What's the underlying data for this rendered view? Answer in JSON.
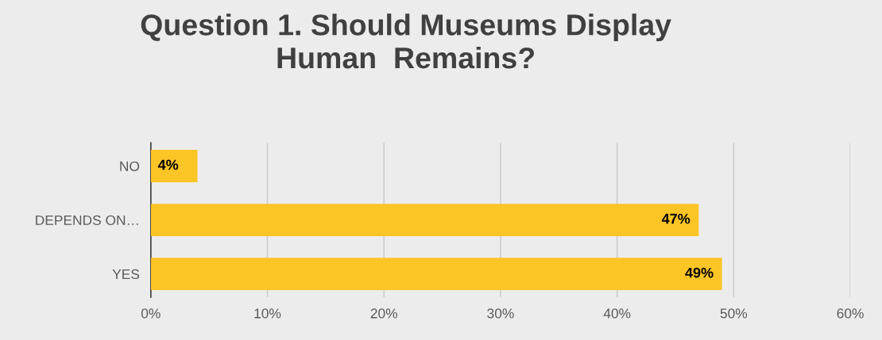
{
  "chart_data": {
    "type": "bar",
    "orientation": "horizontal",
    "title": "Question 1. Should Museums Display\nHuman  Remains?",
    "categories": [
      "NO",
      "DEPENDS ON…",
      "YES"
    ],
    "values": [
      4,
      47,
      49
    ],
    "color": "#fcc526",
    "value_labels": [
      "4%",
      "47%",
      "49%"
    ],
    "xlim": [
      0,
      60
    ],
    "xticks": [
      {
        "value": 0,
        "label": "0%"
      },
      {
        "value": 10,
        "label": "10%"
      },
      {
        "value": 20,
        "label": "20%"
      },
      {
        "value": 30,
        "label": "30%"
      },
      {
        "value": 40,
        "label": "40%"
      },
      {
        "value": 50,
        "label": "50%"
      },
      {
        "value": 60,
        "label": "60%"
      }
    ],
    "grid": "x",
    "legend": false
  }
}
